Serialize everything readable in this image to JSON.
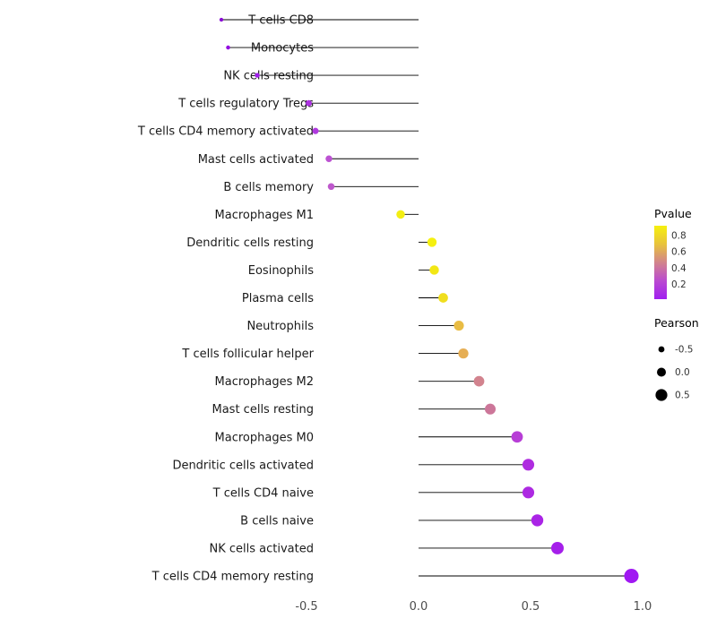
{
  "figure": {
    "background": "#FFFFFF"
  },
  "chart_data": {
    "type": "lollipop",
    "orientation": "horizontal",
    "title": "",
    "xlabel": "",
    "ylabel": "",
    "xlim": [
      -1.0,
      1.1
    ],
    "x_ticks": {
      "labels": [
        "-0.5",
        "0.0",
        "0.5",
        "1.0"
      ],
      "values": [
        -0.5,
        0.0,
        0.5,
        1.0
      ]
    },
    "stem_color": "#000000",
    "text_color": "#1A1A1A",
    "tick_text_color": "#4D4D4D",
    "points": [
      {
        "category": "T cells CD8",
        "pearson": -0.88,
        "color": "#8A09D6"
      },
      {
        "category": "Monocytes",
        "pearson": -0.85,
        "color": "#930EE0"
      },
      {
        "category": "NK cells resting",
        "pearson": -0.72,
        "color": "#A01EEA"
      },
      {
        "category": "T cells regulatory  Tregs",
        "pearson": -0.49,
        "color": "#AC32E2"
      },
      {
        "category": "T cells CD4 memory activated",
        "pearson": -0.46,
        "color": "#B03ADF"
      },
      {
        "category": "Mast cells activated",
        "pearson": -0.4,
        "color": "#BC52D2"
      },
      {
        "category": "B cells memory",
        "pearson": -0.39,
        "color": "#BE58CC"
      },
      {
        "category": "Macrophages M1",
        "pearson": -0.08,
        "color": "#F3EE12"
      },
      {
        "category": "Dendritic cells resting",
        "pearson": 0.06,
        "color": "#F5F010"
      },
      {
        "category": "Eosinophils",
        "pearson": 0.07,
        "color": "#F2E714"
      },
      {
        "category": "Plasma cells",
        "pearson": 0.11,
        "color": "#F0DE1E"
      },
      {
        "category": "Neutrophils",
        "pearson": 0.18,
        "color": "#E9BC44"
      },
      {
        "category": "T cells follicular helper",
        "pearson": 0.2,
        "color": "#E6AE54"
      },
      {
        "category": "Macrophages M2",
        "pearson": 0.27,
        "color": "#D2838E"
      },
      {
        "category": "Mast cells resting",
        "pearson": 0.32,
        "color": "#CC7699"
      },
      {
        "category": "Macrophages M0",
        "pearson": 0.44,
        "color": "#B73ED6"
      },
      {
        "category": "Dendritic cells activated",
        "pearson": 0.49,
        "color": "#AF2CE0"
      },
      {
        "category": "T cells CD4 naive",
        "pearson": 0.49,
        "color": "#AD2AE2"
      },
      {
        "category": "B cells naive",
        "pearson": 0.53,
        "color": "#AA24E6"
      },
      {
        "category": "NK cells activated",
        "pearson": 0.62,
        "color": "#A51FEA"
      },
      {
        "category": "T cells CD4 memory resting",
        "pearson": 0.95,
        "color": "#A018F2"
      }
    ],
    "legends": {
      "pvalue": {
        "title": "Pvalue",
        "tick_labels": [
          "0.8",
          "0.6",
          "0.4",
          "0.2"
        ],
        "tick_values": [
          0.8,
          0.6,
          0.4,
          0.2
        ],
        "range": [
          0.02,
          0.92
        ],
        "gradient_stops": [
          "#F6F00E",
          "#E8C33B",
          "#D2848B",
          "#BA4BD0",
          "#A11EF0"
        ]
      },
      "pearson": {
        "title": "Pearson",
        "keys": [
          {
            "label": "-0.5",
            "value": -0.5
          },
          {
            "label": "0.0",
            "value": 0.0
          },
          {
            "label": "0.5",
            "value": 0.5
          }
        ],
        "dot_color": "#000000"
      }
    }
  }
}
